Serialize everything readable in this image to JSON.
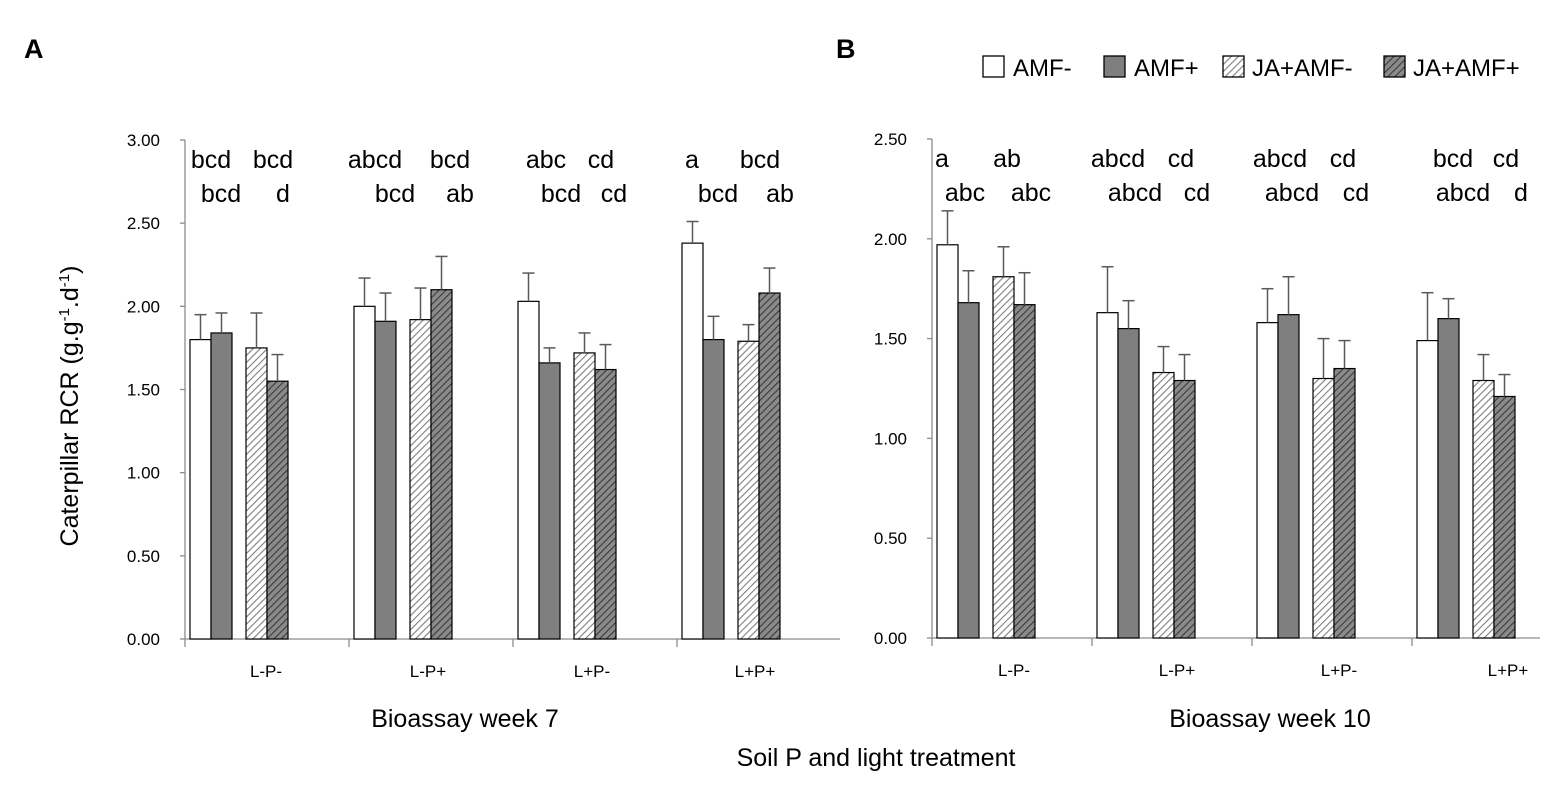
{
  "chart_data": [
    {
      "type": "bar",
      "panel_label": "A",
      "title": "",
      "xlabel": "Bioassay week 7",
      "ylabel": "Caterpillar RCR (g.g-1.d-1)",
      "ylim": [
        0,
        3.0
      ],
      "yticks": [
        "0.00",
        "0.50",
        "1.00",
        "1.50",
        "2.00",
        "2.50",
        "3.00"
      ],
      "categories": [
        "L-P-",
        "L-P+",
        "L+P-",
        "L+P+"
      ],
      "series": [
        {
          "name": "AMF-",
          "values": [
            1.8,
            2.0,
            2.03,
            2.38
          ],
          "errors": [
            0.15,
            0.17,
            0.17,
            0.13
          ]
        },
        {
          "name": "AMF+",
          "values": [
            1.84,
            1.91,
            1.66,
            1.8
          ],
          "errors": [
            0.12,
            0.17,
            0.09,
            0.14
          ]
        },
        {
          "name": "JA+AMF-",
          "values": [
            1.75,
            1.92,
            1.72,
            1.79
          ],
          "errors": [
            0.21,
            0.19,
            0.12,
            0.1
          ]
        },
        {
          "name": "JA+AMF+",
          "values": [
            1.55,
            2.1,
            1.62,
            2.08
          ],
          "errors": [
            0.16,
            0.2,
            0.15,
            0.15
          ]
        }
      ],
      "letters": [
        [
          [
            "bcd",
            "bcd"
          ],
          [
            "bcd",
            "d"
          ]
        ],
        [
          [
            "abcd",
            "bcd"
          ],
          [
            "bcd",
            "ab"
          ]
        ],
        [
          [
            "abc",
            "cd"
          ],
          [
            "bcd",
            "cd"
          ]
        ],
        [
          [
            "a",
            "bcd"
          ],
          [
            "bcd",
            "ab"
          ]
        ]
      ]
    },
    {
      "type": "bar",
      "panel_label": "B",
      "title": "",
      "xlabel": "Bioassay week 10",
      "ylabel": "",
      "ylim": [
        0,
        2.5
      ],
      "yticks": [
        "0.00",
        "0.50",
        "1.00",
        "1.50",
        "2.00",
        "2.50"
      ],
      "categories": [
        "L-P-",
        "L-P+",
        "L+P-",
        "L+P+"
      ],
      "series": [
        {
          "name": "AMF-",
          "values": [
            1.97,
            1.63,
            1.58,
            1.49
          ],
          "errors": [
            0.17,
            0.23,
            0.17,
            0.24
          ]
        },
        {
          "name": "AMF+",
          "values": [
            1.68,
            1.55,
            1.62,
            1.6
          ],
          "errors": [
            0.16,
            0.14,
            0.19,
            0.1
          ]
        },
        {
          "name": "JA+AMF-",
          "values": [
            1.81,
            1.33,
            1.3,
            1.29
          ],
          "errors": [
            0.15,
            0.13,
            0.2,
            0.13
          ]
        },
        {
          "name": "JA+AMF+",
          "values": [
            1.67,
            1.29,
            1.35,
            1.21
          ],
          "errors": [
            0.16,
            0.13,
            0.14,
            0.11
          ]
        }
      ],
      "letters": [
        [
          [
            "a",
            "ab"
          ],
          [
            "abc",
            "abc"
          ]
        ],
        [
          [
            "abcd",
            "cd"
          ],
          [
            "abcd",
            "cd"
          ]
        ],
        [
          [
            "abcd",
            "cd"
          ],
          [
            "abcd",
            "cd"
          ]
        ],
        [
          [
            "bcd",
            "cd"
          ],
          [
            "abcd",
            "d"
          ]
        ]
      ]
    }
  ],
  "legend": [
    "AMF-",
    "AMF+",
    "JA+AMF-",
    "JA+AMF+"
  ],
  "shared_xlabel": "Soil P and light treatment",
  "colors": {
    "open": "#ffffff",
    "filled": "#7f7f7f",
    "hatch_light": "#7f7f7f",
    "hatch_dark": "#3a3a3a",
    "error": "#595959",
    "axis": "#8c8c8c"
  }
}
